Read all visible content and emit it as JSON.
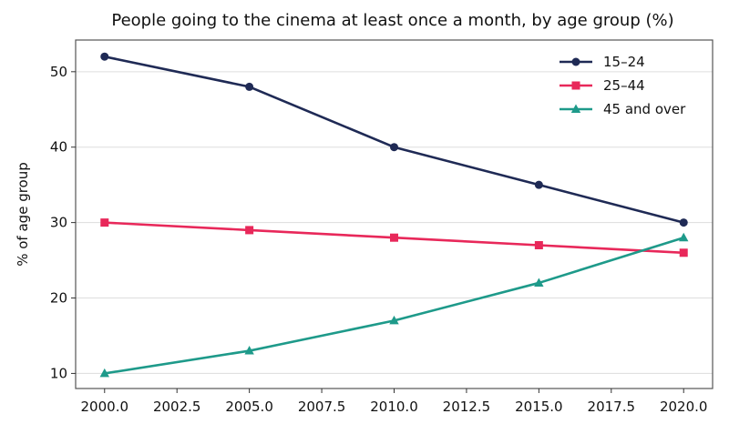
{
  "chart_data": {
    "type": "line",
    "title": "People going to the cinema at least once a month, by age group (%)",
    "xlabel": "",
    "ylabel": "% of age group",
    "x": [
      2000,
      2005,
      2010,
      2015,
      2020
    ],
    "xlim": [
      1999,
      2021
    ],
    "ylim": [
      8,
      54.2
    ],
    "x_ticks": [
      2000.0,
      2002.5,
      2005.0,
      2007.5,
      2010.0,
      2012.5,
      2015.0,
      2017.5,
      2020.0
    ],
    "x_tick_labels": [
      "2000.0",
      "2002.5",
      "2005.0",
      "2007.5",
      "2010.0",
      "2012.5",
      "2015.0",
      "2017.5",
      "2020.0"
    ],
    "y_ticks": [
      10,
      20,
      30,
      40,
      50
    ],
    "y_tick_labels": [
      "10",
      "20",
      "30",
      "40",
      "50"
    ],
    "grid": "horizontal",
    "legend_position": "top-right",
    "series": [
      {
        "name": "15–24",
        "values": [
          52,
          48,
          40,
          35,
          30
        ],
        "color": "#1f2a55",
        "marker": "circle"
      },
      {
        "name": "25–44",
        "values": [
          30,
          29,
          28,
          27,
          26
        ],
        "color": "#e8285a",
        "marker": "square"
      },
      {
        "name": "45 and over",
        "values": [
          10,
          13,
          17,
          22,
          28
        ],
        "color": "#1e9a8a",
        "marker": "triangle"
      }
    ]
  }
}
